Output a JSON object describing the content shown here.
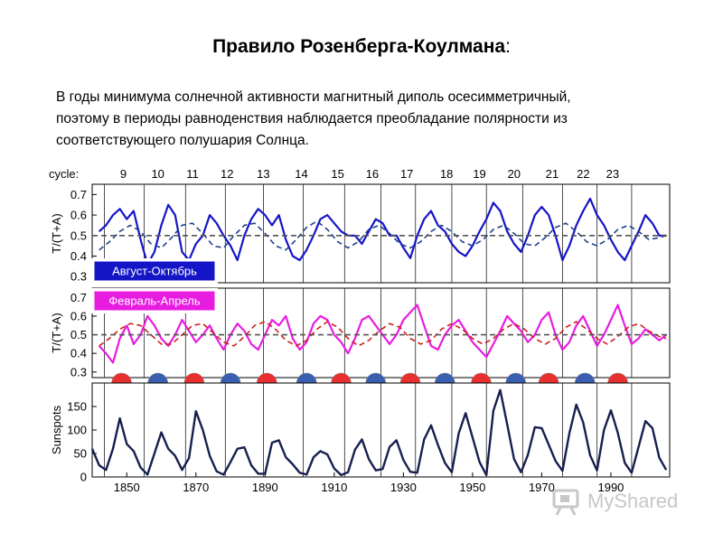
{
  "title": "Правило Розенберга-Коулмана",
  "title_colon": ":",
  "subtitle_lines": [
    "В годы минимума солнечной активности магнитный диполь осесимметричный,",
    "поэтому в периоды равноденствия наблюдается преобладание полярности из",
    "соответствующего полушария Солнца."
  ],
  "watermark": "MyShared",
  "chart_data": [
    {
      "type": "line",
      "panel": "top",
      "ylabel": "T/(T+A)",
      "yticks": [
        0.3,
        0.4,
        0.5,
        0.6,
        0.7
      ],
      "ylim": [
        0.27,
        0.75
      ],
      "xlim": [
        1840,
        2007
      ],
      "legend": "Август-Октябрь",
      "cycle_label": "cycle:",
      "cycles": [
        "9",
        "10",
        "11",
        "12",
        "13",
        "14",
        "15",
        "16",
        "17",
        "18",
        "19",
        "20",
        "21",
        "22",
        "23"
      ],
      "cycle_centers": [
        1849,
        1859,
        1869,
        1879,
        1889.5,
        1900.5,
        1911,
        1921,
        1931,
        1942.5,
        1952,
        1962,
        1973,
        1982,
        1990.5
      ],
      "cycle_boundaries": [
        1843.5,
        1855,
        1867,
        1878.5,
        1889.5,
        1901,
        1913,
        1923.5,
        1933.5,
        1944,
        1954,
        1964.5,
        1976,
        1986,
        1996
      ],
      "colors": {
        "observed": "#1515c8",
        "model": "#1f3f8f"
      },
      "series": [
        {
          "name": "",
          "style": "solid",
          "color": "#1515c8",
          "x": [
            1842,
            1844,
            1846,
            1848,
            1850,
            1852,
            1854,
            1856,
            1858,
            1860,
            1862,
            1864,
            1866,
            1868,
            1870,
            1872,
            1874,
            1876,
            1878,
            1880,
            1882,
            1884,
            1886,
            1888,
            1890,
            1892,
            1894,
            1896,
            1898,
            1900,
            1902,
            1904,
            1906,
            1908,
            1910,
            1912,
            1914,
            1916,
            1918,
            1920,
            1922,
            1924,
            1926,
            1928,
            1930,
            1932,
            1934,
            1936,
            1938,
            1940,
            1942,
            1944,
            1946,
            1948,
            1950,
            1952,
            1954,
            1956,
            1958,
            1960,
            1962,
            1964,
            1966,
            1968,
            1970,
            1972,
            1974,
            1976,
            1978,
            1980,
            1982,
            1984,
            1986,
            1988,
            1990,
            1992,
            1994,
            1996,
            1998,
            2000,
            2002,
            2004,
            2006
          ],
          "values": [
            0.52,
            0.55,
            0.6,
            0.63,
            0.58,
            0.62,
            0.48,
            0.36,
            0.42,
            0.55,
            0.65,
            0.6,
            0.42,
            0.38,
            0.46,
            0.5,
            0.6,
            0.56,
            0.5,
            0.45,
            0.38,
            0.5,
            0.58,
            0.63,
            0.6,
            0.55,
            0.6,
            0.48,
            0.4,
            0.38,
            0.43,
            0.5,
            0.58,
            0.6,
            0.56,
            0.52,
            0.5,
            0.5,
            0.46,
            0.52,
            0.58,
            0.56,
            0.5,
            0.5,
            0.44,
            0.39,
            0.5,
            0.58,
            0.62,
            0.55,
            0.52,
            0.46,
            0.42,
            0.4,
            0.45,
            0.52,
            0.58,
            0.66,
            0.62,
            0.52,
            0.46,
            0.42,
            0.5,
            0.6,
            0.64,
            0.6,
            0.5,
            0.38,
            0.45,
            0.55,
            0.62,
            0.68,
            0.6,
            0.55,
            0.48,
            0.42,
            0.38,
            0.45,
            0.52,
            0.6,
            0.56,
            0.5,
            0.5
          ]
        },
        {
          "name": "",
          "style": "dashed",
          "color": "#1f3f8f",
          "x": [
            1842,
            1845,
            1848,
            1851,
            1854,
            1857,
            1860,
            1863,
            1866,
            1869,
            1872,
            1875,
            1878,
            1881,
            1884,
            1887,
            1890,
            1893,
            1896,
            1899,
            1902,
            1905,
            1908,
            1911,
            1914,
            1917,
            1920,
            1923,
            1926,
            1929,
            1932,
            1935,
            1938,
            1941,
            1944,
            1947,
            1950,
            1953,
            1956,
            1959,
            1962,
            1965,
            1968,
            1971,
            1974,
            1977,
            1980,
            1983,
            1986,
            1989,
            1992,
            1995,
            1998,
            2001,
            2004,
            2006
          ],
          "values": [
            0.43,
            0.47,
            0.52,
            0.55,
            0.52,
            0.46,
            0.44,
            0.49,
            0.55,
            0.56,
            0.51,
            0.45,
            0.44,
            0.5,
            0.55,
            0.56,
            0.51,
            0.45,
            0.43,
            0.48,
            0.54,
            0.57,
            0.53,
            0.47,
            0.44,
            0.47,
            0.53,
            0.55,
            0.51,
            0.46,
            0.44,
            0.47,
            0.52,
            0.55,
            0.52,
            0.47,
            0.45,
            0.48,
            0.53,
            0.55,
            0.51,
            0.46,
            0.45,
            0.49,
            0.54,
            0.56,
            0.52,
            0.47,
            0.45,
            0.48,
            0.53,
            0.55,
            0.52,
            0.48,
            0.49,
            0.5
          ]
        },
        {
          "name": "",
          "style": "dashed",
          "color": "#555555",
          "x": [
            1840,
            2007
          ],
          "values": [
            0.5,
            0.5
          ]
        }
      ]
    },
    {
      "type": "line",
      "panel": "middle",
      "ylabel": "T/(T+A)",
      "yticks": [
        0.3,
        0.4,
        0.5,
        0.6,
        0.7
      ],
      "ylim": [
        0.27,
        0.75
      ],
      "xlim": [
        1840,
        2007
      ],
      "legend": "Февраль-Апрель",
      "colors": {
        "observed": "#e81ce0",
        "model": "#cc1f1f"
      },
      "series": [
        {
          "name": "",
          "style": "solid",
          "color": "#e81ce0",
          "x": [
            1842,
            1844,
            1846,
            1848,
            1850,
            1852,
            1854,
            1856,
            1858,
            1860,
            1862,
            1864,
            1866,
            1868,
            1870,
            1872,
            1874,
            1876,
            1878,
            1880,
            1882,
            1884,
            1886,
            1888,
            1890,
            1892,
            1894,
            1896,
            1898,
            1900,
            1902,
            1904,
            1906,
            1908,
            1910,
            1912,
            1914,
            1916,
            1918,
            1920,
            1922,
            1924,
            1926,
            1928,
            1930,
            1932,
            1934,
            1936,
            1938,
            1940,
            1942,
            1944,
            1946,
            1948,
            1950,
            1952,
            1954,
            1956,
            1958,
            1960,
            1962,
            1964,
            1966,
            1968,
            1970,
            1972,
            1974,
            1976,
            1978,
            1980,
            1982,
            1984,
            1986,
            1988,
            1990,
            1992,
            1994,
            1996,
            1998,
            2000,
            2002,
            2004,
            2006
          ],
          "values": [
            0.44,
            0.4,
            0.35,
            0.48,
            0.55,
            0.45,
            0.5,
            0.6,
            0.55,
            0.48,
            0.44,
            0.5,
            0.58,
            0.52,
            0.46,
            0.5,
            0.55,
            0.48,
            0.42,
            0.5,
            0.56,
            0.52,
            0.45,
            0.42,
            0.5,
            0.58,
            0.55,
            0.6,
            0.48,
            0.42,
            0.46,
            0.56,
            0.6,
            0.58,
            0.5,
            0.46,
            0.4,
            0.48,
            0.58,
            0.6,
            0.55,
            0.5,
            0.45,
            0.5,
            0.58,
            0.62,
            0.66,
            0.55,
            0.44,
            0.42,
            0.5,
            0.55,
            0.58,
            0.52,
            0.46,
            0.42,
            0.38,
            0.45,
            0.52,
            0.6,
            0.56,
            0.52,
            0.46,
            0.5,
            0.58,
            0.62,
            0.5,
            0.42,
            0.46,
            0.55,
            0.6,
            0.52,
            0.44,
            0.5,
            0.58,
            0.66,
            0.55,
            0.45,
            0.48,
            0.53,
            0.5,
            0.47,
            0.5
          ]
        },
        {
          "name": "",
          "style": "dashed",
          "color": "#cc1f1f",
          "x": [
            1842,
            1845,
            1848,
            1851,
            1854,
            1857,
            1860,
            1863,
            1866,
            1869,
            1872,
            1875,
            1878,
            1881,
            1884,
            1887,
            1890,
            1893,
            1896,
            1899,
            1902,
            1905,
            1908,
            1911,
            1914,
            1917,
            1920,
            1923,
            1926,
            1929,
            1932,
            1935,
            1938,
            1941,
            1944,
            1947,
            1950,
            1953,
            1956,
            1959,
            1962,
            1965,
            1968,
            1971,
            1974,
            1977,
            1980,
            1983,
            1986,
            1989,
            1992,
            1995,
            1998,
            2001,
            2004,
            2006
          ],
          "values": [
            0.44,
            0.48,
            0.53,
            0.56,
            0.55,
            0.5,
            0.45,
            0.45,
            0.5,
            0.55,
            0.56,
            0.51,
            0.46,
            0.44,
            0.49,
            0.55,
            0.57,
            0.53,
            0.47,
            0.44,
            0.47,
            0.53,
            0.57,
            0.54,
            0.48,
            0.44,
            0.47,
            0.52,
            0.56,
            0.54,
            0.48,
            0.45,
            0.47,
            0.53,
            0.56,
            0.53,
            0.48,
            0.45,
            0.48,
            0.53,
            0.56,
            0.53,
            0.48,
            0.45,
            0.48,
            0.54,
            0.57,
            0.53,
            0.48,
            0.45,
            0.49,
            0.54,
            0.56,
            0.52,
            0.49,
            0.48
          ]
        },
        {
          "name": "",
          "style": "dashed",
          "color": "#555555",
          "x": [
            1840,
            2007
          ],
          "values": [
            0.5,
            0.5
          ]
        }
      ],
      "polarity_markers": {
        "x": [
          1848.5,
          1859,
          1869.5,
          1880,
          1890.5,
          1902,
          1912,
          1922,
          1932,
          1942,
          1952.5,
          1962.5,
          1972,
          1982.5,
          1992
        ],
        "orientation": [
          "red-top",
          "blue-top",
          "red-top",
          "blue-top",
          "red-top",
          "blue-top",
          "red-top",
          "blue-top",
          "red-top",
          "blue-top",
          "red-top",
          "blue-top",
          "red-top",
          "blue-top",
          "red-top"
        ],
        "colors": {
          "red": "#e83030",
          "blue": "#3b5fb0"
        }
      }
    },
    {
      "type": "line",
      "panel": "bottom",
      "ylabel": "Sunspots",
      "yticks": [
        0,
        50,
        100,
        150
      ],
      "ylim": [
        0,
        200
      ],
      "xlim": [
        1840,
        2007
      ],
      "xticks": [
        1850,
        1870,
        1890,
        1910,
        1930,
        1950,
        1970,
        1990
      ],
      "colors": {
        "line": "#16204f"
      },
      "series": [
        {
          "name": "",
          "style": "solid",
          "color": "#16204f",
          "x": [
            1840,
            1842,
            1844,
            1846,
            1848,
            1850,
            1852,
            1854,
            1856,
            1858,
            1860,
            1862,
            1864,
            1866,
            1868,
            1870,
            1872,
            1874,
            1876,
            1878,
            1880,
            1882,
            1884,
            1886,
            1888,
            1890,
            1892,
            1894,
            1896,
            1898,
            1900,
            1902,
            1904,
            1906,
            1908,
            1910,
            1912,
            1914,
            1916,
            1918,
            1920,
            1922,
            1924,
            1926,
            1928,
            1930,
            1932,
            1934,
            1936,
            1938,
            1940,
            1942,
            1944,
            1946,
            1948,
            1950,
            1952,
            1954,
            1956,
            1958,
            1960,
            1962,
            1964,
            1966,
            1968,
            1970,
            1972,
            1974,
            1976,
            1978,
            1980,
            1982,
            1984,
            1986,
            1988,
            1990,
            1992,
            1994,
            1996,
            1998,
            2000,
            2002,
            2004,
            2006
          ],
          "values": [
            60,
            25,
            15,
            60,
            125,
            70,
            55,
            20,
            5,
            50,
            95,
            60,
            45,
            15,
            40,
            140,
            100,
            45,
            12,
            5,
            32,
            60,
            63,
            25,
            7,
            7,
            73,
            78,
            42,
            27,
            9,
            5,
            42,
            55,
            48,
            18,
            4,
            10,
            58,
            80,
            38,
            14,
            17,
            64,
            78,
            36,
            11,
            9,
            80,
            110,
            68,
            30,
            10,
            93,
            136,
            84,
            32,
            4,
            141,
            185,
            112,
            38,
            10,
            47,
            106,
            104,
            69,
            34,
            13,
            93,
            154,
            116,
            46,
            14,
            100,
            142,
            94,
            30,
            9,
            64,
            119,
            104,
            41,
            15
          ]
        }
      ]
    }
  ]
}
